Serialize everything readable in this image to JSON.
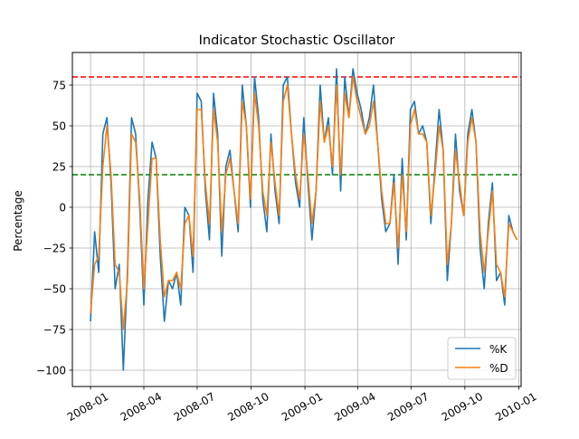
{
  "chart_data": {
    "type": "line",
    "title": "Indicator Stochastic Oscillator",
    "xlabel": "",
    "ylabel": "Percentage",
    "xlim": [
      "2007-12-01",
      "2010-01-05"
    ],
    "ylim": [
      -110,
      95
    ],
    "grid": true,
    "legend_position": "lower-right",
    "x_ticks": [
      "2008-01-01",
      "2008-04-01",
      "2008-07-01",
      "2008-10-01",
      "2009-01-01",
      "2009-04-01",
      "2009-07-01",
      "2009-10-01",
      "2010-01-01"
    ],
    "x_tick_labels": [
      "2008-01",
      "2008-04",
      "2008-07",
      "2008-10",
      "2009-01",
      "2009-04",
      "2009-07",
      "2009-10",
      "2010-01"
    ],
    "y_ticks": [
      75,
      50,
      25,
      0,
      -25,
      -50,
      -75,
      -100
    ],
    "y_tick_labels": [
      "75",
      "50",
      "25",
      "0",
      "−25",
      "−50",
      "−75",
      "−100"
    ],
    "reference_lines": [
      {
        "y": 80,
        "color": "#ff0000",
        "style": "dashed"
      },
      {
        "y": 20,
        "color": "#008000",
        "style": "dashed"
      }
    ],
    "x": [
      "2008-01-01",
      "2008-01-08",
      "2008-01-15",
      "2008-01-22",
      "2008-01-29",
      "2008-02-05",
      "2008-02-12",
      "2008-02-19",
      "2008-02-26",
      "2008-03-04",
      "2008-03-11",
      "2008-03-18",
      "2008-03-25",
      "2008-04-01",
      "2008-04-08",
      "2008-04-15",
      "2008-04-22",
      "2008-04-29",
      "2008-05-06",
      "2008-05-13",
      "2008-05-20",
      "2008-05-27",
      "2008-06-03",
      "2008-06-10",
      "2008-06-17",
      "2008-06-24",
      "2008-07-01",
      "2008-07-08",
      "2008-07-15",
      "2008-07-22",
      "2008-07-29",
      "2008-08-05",
      "2008-08-12",
      "2008-08-19",
      "2008-08-26",
      "2008-09-02",
      "2008-09-09",
      "2008-09-16",
      "2008-09-23",
      "2008-09-30",
      "2008-10-07",
      "2008-10-14",
      "2008-10-21",
      "2008-10-28",
      "2008-11-04",
      "2008-11-11",
      "2008-11-18",
      "2008-11-25",
      "2008-12-02",
      "2008-12-09",
      "2008-12-16",
      "2008-12-23",
      "2008-12-30",
      "2009-01-06",
      "2009-01-13",
      "2009-01-20",
      "2009-01-27",
      "2009-02-03",
      "2009-02-10",
      "2009-02-17",
      "2009-02-24",
      "2009-03-03",
      "2009-03-10",
      "2009-03-17",
      "2009-03-24",
      "2009-03-31",
      "2009-04-07",
      "2009-04-14",
      "2009-04-21",
      "2009-04-28",
      "2009-05-05",
      "2009-05-12",
      "2009-05-19",
      "2009-05-26",
      "2009-06-02",
      "2009-06-09",
      "2009-06-16",
      "2009-06-23",
      "2009-06-30",
      "2009-07-07",
      "2009-07-14",
      "2009-07-21",
      "2009-07-28",
      "2009-08-04",
      "2009-08-11",
      "2009-08-18",
      "2009-08-25",
      "2009-09-01",
      "2009-09-08",
      "2009-09-15",
      "2009-09-22",
      "2009-09-29",
      "2009-10-06",
      "2009-10-13",
      "2009-10-20",
      "2009-10-27",
      "2009-11-03",
      "2009-11-10",
      "2009-11-17",
      "2009-11-24",
      "2009-12-01",
      "2009-12-08",
      "2009-12-15",
      "2009-12-22",
      "2009-12-29"
    ],
    "series": [
      {
        "name": "%K",
        "color": "#1f77b4",
        "values": [
          -70,
          -15,
          -40,
          45,
          55,
          15,
          -50,
          -35,
          -100,
          -40,
          55,
          45,
          0,
          -60,
          5,
          40,
          30,
          -30,
          -70,
          -45,
          -50,
          -40,
          -60,
          0,
          -5,
          -40,
          70,
          65,
          10,
          -20,
          70,
          45,
          -30,
          25,
          35,
          10,
          -15,
          75,
          50,
          0,
          80,
          55,
          5,
          -15,
          45,
          10,
          -10,
          75,
          80,
          45,
          15,
          0,
          55,
          15,
          -20,
          10,
          75,
          40,
          55,
          20,
          85,
          10,
          80,
          55,
          85,
          70,
          60,
          45,
          55,
          75,
          40,
          5,
          -15,
          -10,
          20,
          -35,
          30,
          -20,
          60,
          65,
          45,
          50,
          40,
          -10,
          25,
          60,
          35,
          -45,
          -10,
          45,
          10,
          -5,
          45,
          60,
          40,
          -25,
          -50,
          -10,
          15,
          -45,
          -40,
          -60,
          -5,
          -15,
          -20
        ]
      },
      {
        "name": "%D",
        "color": "#ff7f0e",
        "values": [
          -65,
          -35,
          -30,
          25,
          50,
          20,
          -35,
          -40,
          -75,
          -45,
          45,
          40,
          5,
          -50,
          -10,
          30,
          30,
          -20,
          -55,
          -45,
          -45,
          -40,
          -50,
          -10,
          -5,
          -30,
          60,
          60,
          15,
          -10,
          60,
          40,
          -15,
          20,
          30,
          10,
          -10,
          65,
          50,
          5,
          70,
          50,
          10,
          -5,
          40,
          15,
          -5,
          65,
          75,
          45,
          20,
          5,
          45,
          20,
          -10,
          10,
          65,
          40,
          50,
          25,
          75,
          20,
          70,
          55,
          80,
          65,
          55,
          45,
          50,
          65,
          40,
          10,
          -10,
          -10,
          15,
          -25,
          20,
          -15,
          50,
          60,
          45,
          45,
          40,
          -5,
          20,
          50,
          35,
          -35,
          -10,
          35,
          15,
          -5,
          40,
          55,
          40,
          -15,
          -40,
          -15,
          10,
          -35,
          -40,
          -55,
          -10,
          -15,
          -20
        ]
      }
    ]
  }
}
